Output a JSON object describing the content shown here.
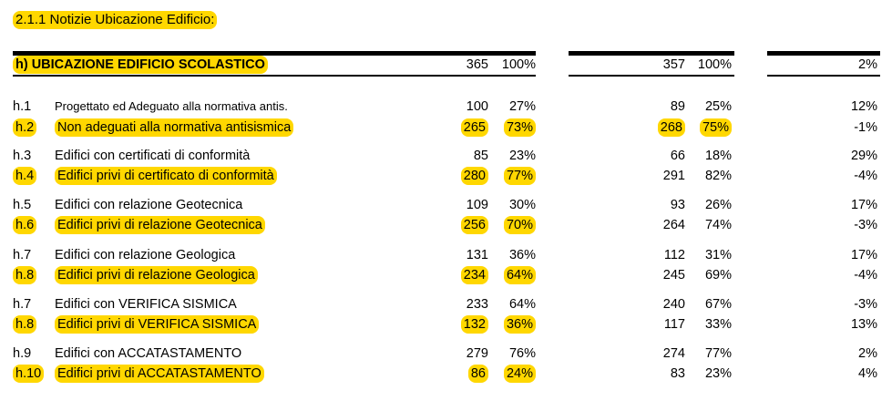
{
  "section_title": "2.1.1 Notizie Ubicazione Edificio:",
  "header": {
    "label": "h) UBICAZIONE EDIFICIO SCOLASTICO",
    "n1": "365",
    "p1": "100%",
    "n2": "357",
    "p2": "100%",
    "diff": "2%"
  },
  "rows": [
    {
      "code": "h.1",
      "label": "Progettato ed Adeguato alla normativa antis.",
      "n1": "100",
      "p1": "27%",
      "n2": "89",
      "p2": "25%",
      "diff": "12%"
    },
    {
      "code": "h.2",
      "label": "Non adeguati alla normativa antisismica",
      "n1": "265",
      "p1": "73%",
      "n2": "268",
      "p2": "75%",
      "diff": "-1%"
    },
    {
      "code": "h.3",
      "label": "Edifici con certificati di conformità",
      "n1": "85",
      "p1": "23%",
      "n2": "66",
      "p2": "18%",
      "diff": "29%"
    },
    {
      "code": "h.4",
      "label": "Edifici privi di certificato di conformità",
      "n1": "280",
      "p1": "77%",
      "n2": "291",
      "p2": "82%",
      "diff": "-4%"
    },
    {
      "code": "h.5",
      "label": "Edifici con relazione Geotecnica",
      "n1": "109",
      "p1": "30%",
      "n2": "93",
      "p2": "26%",
      "diff": "17%"
    },
    {
      "code": "h.6",
      "label": "Edifici privi di relazione Geotecnica",
      "n1": "256",
      "p1": "70%",
      "n2": "264",
      "p2": "74%",
      "diff": "-3%"
    },
    {
      "code": "h.7",
      "label": "Edifici con relazione Geologica",
      "n1": "131",
      "p1": "36%",
      "n2": "112",
      "p2": "31%",
      "diff": "17%"
    },
    {
      "code": "h.8",
      "label": "Edifici privi di relazione Geologica",
      "n1": "234",
      "p1": "64%",
      "n2": "245",
      "p2": "69%",
      "diff": "-4%"
    },
    {
      "code": "h.7",
      "label": "Edifici con VERIFICA SISMICA",
      "n1": "233",
      "p1": "64%",
      "n2": "240",
      "p2": "67%",
      "diff": "-3%"
    },
    {
      "code": "h.8",
      "label": "Edifici privi di VERIFICA SISMICA",
      "n1": "132",
      "p1": "36%",
      "n2": "117",
      "p2": "33%",
      "diff": "13%"
    },
    {
      "code": "h.9",
      "label": "Edifici con ACCATASTAMENTO",
      "n1": "279",
      "p1": "76%",
      "n2": "274",
      "p2": "77%",
      "diff": "2%"
    },
    {
      "code": "h.10",
      "label": "Edifici privi di ACCATASTAMENTO",
      "n1": "86",
      "p1": "24%",
      "n2": "83",
      "p2": "23%",
      "diff": "4%"
    }
  ],
  "highlight_color": "#ffd700"
}
